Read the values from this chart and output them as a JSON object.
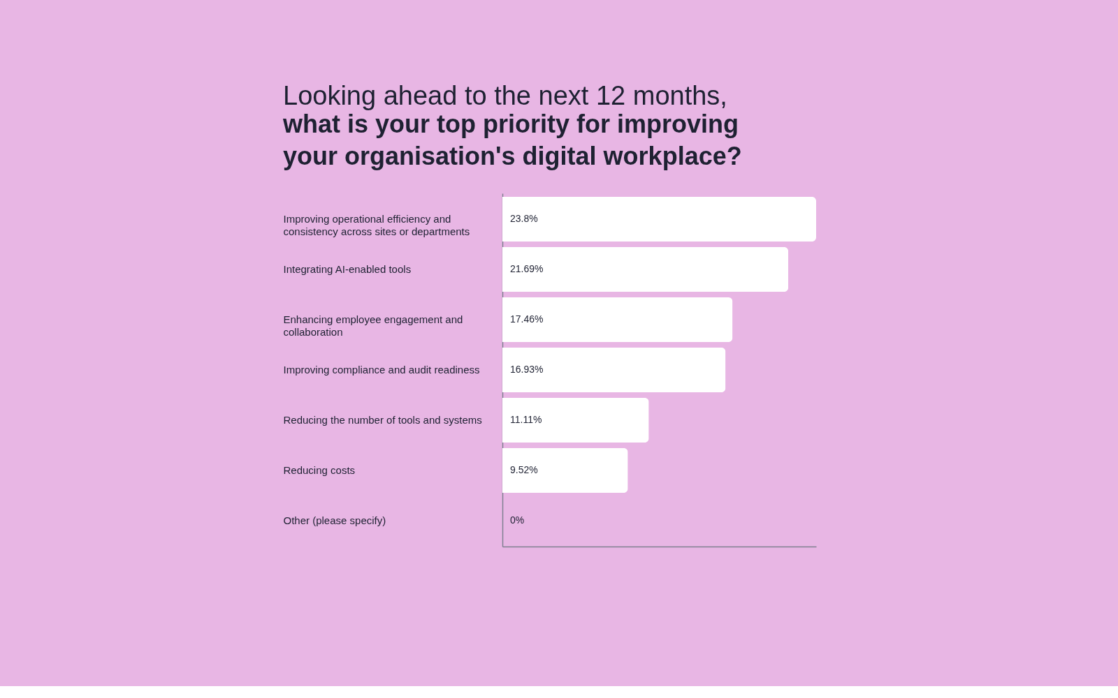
{
  "chart_data": {
    "type": "bar",
    "orientation": "horizontal",
    "title": "Looking ahead to the next 12 months,",
    "subtitle": "what is your top priority for improving your organisation's digital workplace?",
    "categories": [
      "Improving operational efficiency and consistency across sites or departments",
      "Integrating AI-enabled tools",
      "Enhancing employee engagement and collaboration",
      "Improving compliance and audit readiness",
      "Reducing the number of tools and systems",
      "Reducing costs",
      "Other (please specify)"
    ],
    "values": [
      23.8,
      21.69,
      17.46,
      16.93,
      11.11,
      9.52,
      0
    ],
    "value_labels": [
      "23.8%",
      "21.69%",
      "17.46%",
      "16.93%",
      "11.11%",
      "9.52%",
      "0%"
    ],
    "color": "#ffffff",
    "tick_labels": "y"
  }
}
